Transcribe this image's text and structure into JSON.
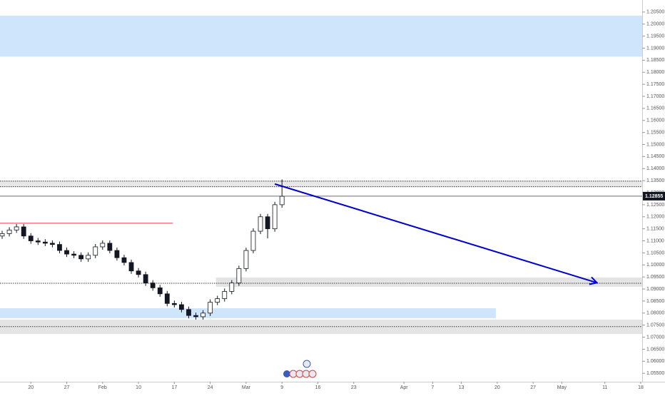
{
  "chart_data": {
    "type": "candlestick",
    "x": [
      -4,
      -3,
      -2,
      -1,
      0,
      1,
      2,
      3,
      4,
      5,
      6,
      7,
      8,
      9,
      10,
      11,
      12,
      13,
      14,
      15,
      16,
      17,
      18,
      19,
      20,
      21,
      22,
      23,
      24,
      25,
      26,
      27,
      28,
      29,
      30,
      31,
      32,
      33,
      34,
      35
    ],
    "open": [
      1.112,
      1.113,
      1.1145,
      1.1158,
      1.112,
      1.11,
      1.1095,
      1.109,
      1.1085,
      1.106,
      1.1045,
      1.104,
      1.1025,
      1.104,
      1.1075,
      1.109,
      1.106,
      1.103,
      1.101,
      1.0975,
      1.096,
      1.0925,
      1.0905,
      1.088,
      1.084,
      1.0835,
      1.0815,
      1.079,
      1.0785,
      1.08,
      1.0845,
      1.086,
      1.089,
      1.0925,
      1.0985,
      1.106,
      1.114,
      1.12,
      1.115,
      1.125
    ],
    "high": [
      1.1142,
      1.1157,
      1.117,
      1.117,
      1.1132,
      1.1112,
      1.1107,
      1.1102,
      1.1097,
      1.1072,
      1.1057,
      1.1052,
      1.1052,
      1.1087,
      1.1102,
      1.1102,
      1.1072,
      1.1042,
      1.1022,
      1.0987,
      1.0972,
      1.0937,
      1.0917,
      1.0892,
      1.0852,
      1.0847,
      1.0827,
      1.0802,
      1.0812,
      1.0857,
      1.0872,
      1.0902,
      1.0937,
      1.0997,
      1.1072,
      1.1152,
      1.1212,
      1.1212,
      1.1262,
      1.1355
    ],
    "low": [
      1.1108,
      1.1118,
      1.1133,
      1.1108,
      1.1088,
      1.1083,
      1.1078,
      1.1073,
      1.1048,
      1.1033,
      1.1028,
      1.1013,
      1.1013,
      1.1028,
      1.1063,
      1.1048,
      1.1018,
      1.0998,
      1.0963,
      1.0948,
      1.0913,
      1.0893,
      1.0868,
      1.0828,
      1.0823,
      1.0803,
      1.0778,
      1.0773,
      1.0773,
      1.0788,
      1.0833,
      1.0848,
      1.0878,
      1.0913,
      1.0973,
      1.1048,
      1.1128,
      1.111,
      1.1138,
      1.1238
    ],
    "close": [
      1.113,
      1.1145,
      1.1158,
      1.112,
      1.11,
      1.1095,
      1.109,
      1.1085,
      1.106,
      1.1045,
      1.104,
      1.1025,
      1.104,
      1.1075,
      1.109,
      1.106,
      1.103,
      1.101,
      1.0975,
      1.096,
      1.0925,
      1.0905,
      1.088,
      1.084,
      1.0835,
      1.0815,
      1.079,
      1.0785,
      1.08,
      1.0845,
      1.086,
      1.089,
      1.0925,
      1.0985,
      1.106,
      1.114,
      1.12,
      1.115,
      1.125,
      1.1285
    ],
    "up_color": "#ffffff",
    "down_color": "#131722",
    "xlim": [
      -4.3,
      85.2
    ],
    "ylim": [
      1.0515,
      1.21
    ],
    "xticks": [
      {
        "value": 0,
        "label": "20"
      },
      {
        "value": 5,
        "label": "27"
      },
      {
        "value": 10,
        "label": "Feb"
      },
      {
        "value": 15,
        "label": "10"
      },
      {
        "value": 20,
        "label": "17"
      },
      {
        "value": 25,
        "label": "24"
      },
      {
        "value": 30,
        "label": "Mar"
      },
      {
        "value": 35,
        "label": "9"
      },
      {
        "value": 40,
        "label": "16"
      },
      {
        "value": 45,
        "label": "23"
      },
      {
        "value": 52,
        "label": "Apr"
      },
      {
        "value": 56,
        "label": "7"
      },
      {
        "value": 60,
        "label": "13"
      },
      {
        "value": 65,
        "label": "20"
      },
      {
        "value": 70,
        "label": "27"
      },
      {
        "value": 74,
        "label": "May"
      },
      {
        "value": 80,
        "label": "11"
      },
      {
        "value": 85,
        "label": "18"
      }
    ],
    "yticks": [
      {
        "value": 1.055,
        "label": "1.05500"
      },
      {
        "value": 1.06,
        "label": "1.06000"
      },
      {
        "value": 1.065,
        "label": "1.06500"
      },
      {
        "value": 1.07,
        "label": "1.07000"
      },
      {
        "value": 1.075,
        "label": "1.07500"
      },
      {
        "value": 1.08,
        "label": "1.08000"
      },
      {
        "value": 1.085,
        "label": "1.08500"
      },
      {
        "value": 1.09,
        "label": "1.09000"
      },
      {
        "value": 1.095,
        "label": "1.09500"
      },
      {
        "value": 1.1,
        "label": "1.10000"
      },
      {
        "value": 1.105,
        "label": "1.10500"
      },
      {
        "value": 1.11,
        "label": "1.11000"
      },
      {
        "value": 1.115,
        "label": "1.11500"
      },
      {
        "value": 1.12,
        "label": "1.12000"
      },
      {
        "value": 1.125,
        "label": "1.12500"
      },
      {
        "value": 1.13,
        "label": "1.13000"
      },
      {
        "value": 1.135,
        "label": "1.13500"
      },
      {
        "value": 1.14,
        "label": "1.14000"
      },
      {
        "value": 1.145,
        "label": "1.14500"
      },
      {
        "value": 1.15,
        "label": "1.15000"
      },
      {
        "value": 1.155,
        "label": "1.15500"
      },
      {
        "value": 1.16,
        "label": "1.16000"
      },
      {
        "value": 1.165,
        "label": "1.16500"
      },
      {
        "value": 1.17,
        "label": "1.17000"
      },
      {
        "value": 1.175,
        "label": "1.17500"
      },
      {
        "value": 1.18,
        "label": "1.18000"
      },
      {
        "value": 1.185,
        "label": "1.18500"
      },
      {
        "value": 1.19,
        "label": "1.19000"
      },
      {
        "value": 1.195,
        "label": "1.19500"
      },
      {
        "value": 1.2,
        "label": "1.20000"
      },
      {
        "value": 1.205,
        "label": "1.20500"
      }
    ],
    "zones": [
      {
        "x": [
          -4.3,
          85.2
        ],
        "y": [
          1.1865,
          1.2035
        ],
        "color": "#cfe5fb"
      },
      {
        "x": [
          -4.3,
          85.2
        ],
        "y": [
          1.1323,
          1.135
        ],
        "color": "#e8e8e8"
      },
      {
        "x": [
          25.8,
          85.2
        ],
        "y": [
          1.0909,
          1.0948
        ],
        "color": "#e4e4e4"
      },
      {
        "x": [
          -4.3,
          64.8
        ],
        "y": [
          1.0779,
          1.082
        ],
        "color": "#cfe5fb"
      },
      {
        "x": [
          -4.3,
          85.2
        ],
        "y": [
          1.0713,
          1.0773
        ],
        "color": "#e4e4e4"
      }
    ],
    "dotted_levels": [
      1.1348,
      1.1325,
      1.0924,
      1.0744
    ],
    "red_line": {
      "x": [
        -4.3,
        19.8
      ],
      "y": 1.1173,
      "color": "#f23645"
    },
    "trendline": {
      "x": [
        34,
        78.9
      ],
      "y": [
        1.1336,
        1.0926
      ],
      "color": "#0000cc"
    },
    "last_price": 1.12855
  }
}
